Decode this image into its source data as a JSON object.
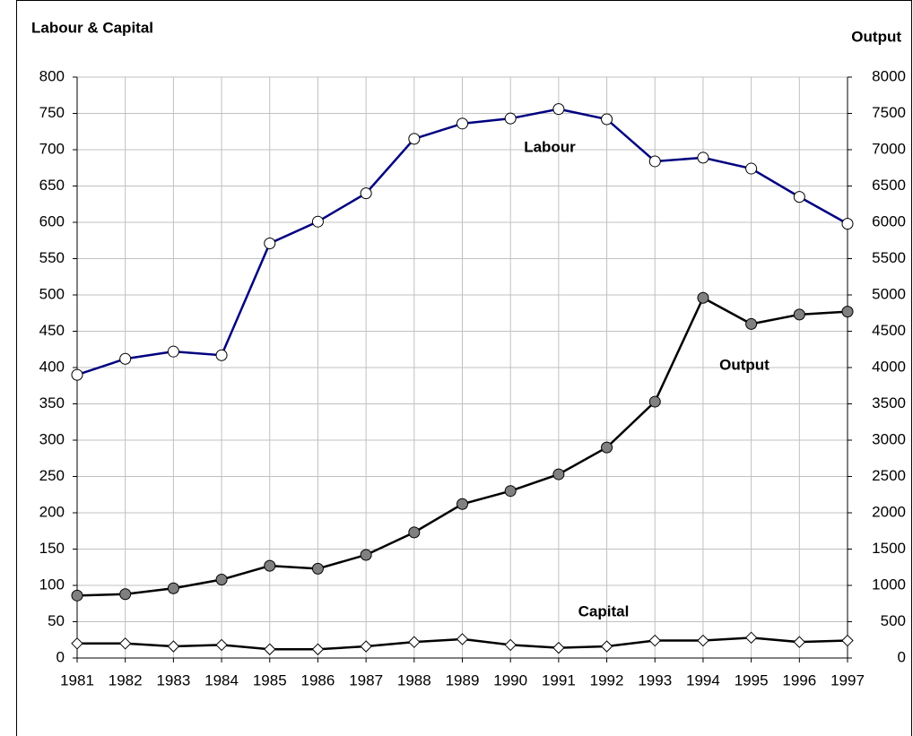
{
  "chart_data": {
    "type": "line",
    "y_label": "Labour & Capital",
    "y2_label": "Output",
    "x": [
      1981,
      1982,
      1983,
      1984,
      1985,
      1986,
      1987,
      1988,
      1989,
      1990,
      1991,
      1992,
      1993,
      1994,
      1995,
      1996,
      1997
    ],
    "xlim": [
      1981,
      1997
    ],
    "xticks": [
      1981,
      1982,
      1983,
      1984,
      1985,
      1986,
      1987,
      1988,
      1989,
      1990,
      1991,
      1992,
      1993,
      1994,
      1995,
      1996,
      1997
    ],
    "ylim": [
      0,
      800
    ],
    "yticks": [
      0,
      50,
      100,
      150,
      200,
      250,
      300,
      350,
      400,
      450,
      500,
      550,
      600,
      650,
      700,
      750,
      800
    ],
    "y2lim": [
      0,
      8000
    ],
    "y2ticks": [
      0,
      500,
      1000,
      1500,
      2000,
      2500,
      3000,
      3500,
      4000,
      4500,
      5000,
      5500,
      6000,
      6500,
      7000,
      7500,
      8000
    ],
    "grid": true,
    "series": [
      {
        "name": "Labour",
        "color": "#000080",
        "marker": "circle",
        "marker_fill": "#ffffff",
        "values": [
          390,
          412,
          422,
          417,
          571,
          601,
          640,
          715,
          736,
          743,
          756,
          742,
          684,
          689,
          674,
          635,
          598
        ]
      },
      {
        "name": "Output",
        "color": "#000000",
        "marker": "circle",
        "marker_fill": "#808080",
        "axis": "y2",
        "values": [
          860,
          880,
          960,
          1080,
          1270,
          1230,
          1420,
          1730,
          2120,
          2300,
          2530,
          2900,
          3530,
          4960,
          4600,
          4730,
          4770
        ]
      },
      {
        "name": "Capital",
        "color": "#000000",
        "marker": "diamond",
        "marker_fill": "#ffffff",
        "values": [
          20,
          20,
          16,
          18,
          12,
          12,
          16,
          22,
          26,
          18,
          14,
          16,
          24,
          24,
          28,
          22,
          24
        ]
      }
    ]
  }
}
